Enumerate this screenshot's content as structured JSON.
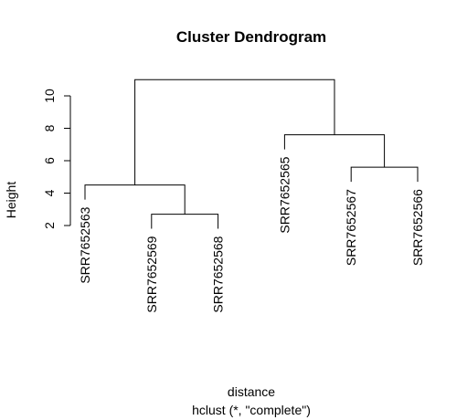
{
  "chart_data": {
    "type": "dendrogram",
    "title": "Cluster Dendrogram",
    "xlabel": "distance",
    "subtitle": "hclust (*, \"complete\")",
    "ylabel": "Height",
    "ylim": [
      2,
      11
    ],
    "yticks": [
      2,
      4,
      6,
      8,
      10
    ],
    "leaf_order": [
      "SRR7652563",
      "SRR7652569",
      "SRR7652568",
      "SRR7652565",
      "SRR7652567",
      "SRR7652566"
    ],
    "merges": [
      {
        "left": "SRR7652569",
        "right": "SRR7652568",
        "height": 2.7
      },
      {
        "left": "SRR7652563",
        "right": "m1",
        "height": 4.5
      },
      {
        "left": "SRR7652567",
        "right": "SRR7652566",
        "height": 5.6
      },
      {
        "left": "SRR7652565",
        "right": "m3",
        "height": 7.6
      },
      {
        "left": "m2",
        "right": "m4",
        "height": 11.0
      }
    ]
  }
}
